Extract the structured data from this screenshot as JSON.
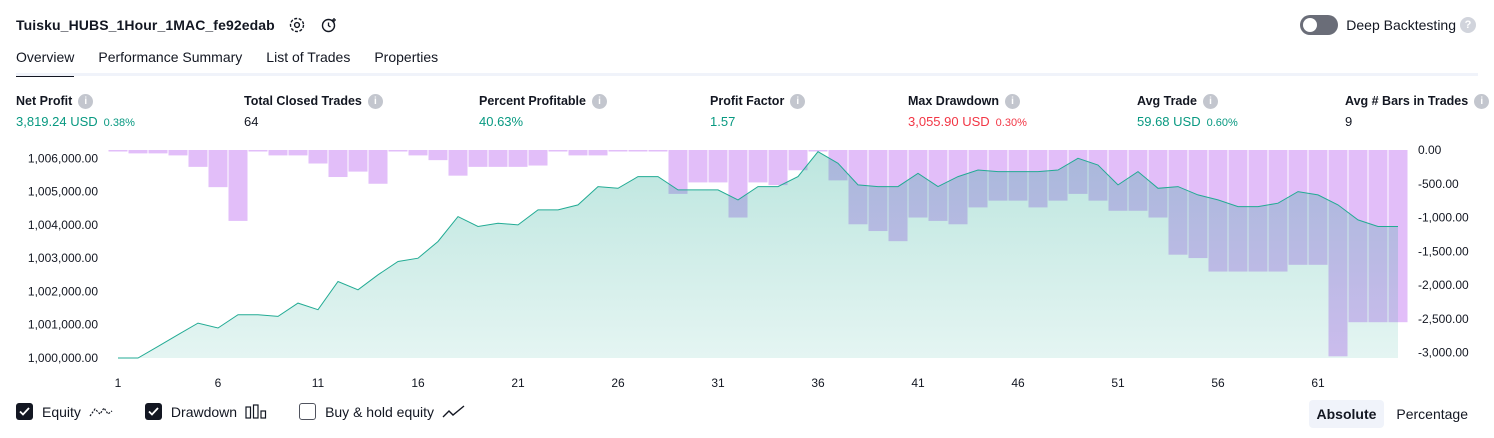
{
  "header": {
    "title": "Tuisku_HUBS_1Hour_1MAC_fe92edab",
    "deep_backtesting_label": "Deep Backtesting"
  },
  "tabs": [
    {
      "label": "Overview",
      "active": true
    },
    {
      "label": "Performance Summary"
    },
    {
      "label": "List of Trades"
    },
    {
      "label": "Properties"
    }
  ],
  "metrics": {
    "net_profit": {
      "label": "Net Profit",
      "value": "3,819.24 USD",
      "pct": "0.38%"
    },
    "total_closed_trades": {
      "label": "Total Closed Trades",
      "value": "64"
    },
    "percent_profitable": {
      "label": "Percent Profitable",
      "value": "40.63%"
    },
    "profit_factor": {
      "label": "Profit Factor",
      "value": "1.57"
    },
    "max_drawdown": {
      "label": "Max Drawdown",
      "value": "3,055.90 USD",
      "pct": "0.30%"
    },
    "avg_trade": {
      "label": "Avg Trade",
      "value": "59.68 USD",
      "pct": "0.60%"
    },
    "avg_bars": {
      "label": "Avg # Bars in Trades",
      "value": "9"
    }
  },
  "colors": {
    "positive": "#089981",
    "negative": "#f23645",
    "equity_line": "#22ab94",
    "drawdown_bar": "#ce93f5"
  },
  "chart_data": {
    "type": "area",
    "x_ticks": [
      "1",
      "6",
      "11",
      "16",
      "21",
      "26",
      "31",
      "36",
      "41",
      "46",
      "51",
      "56",
      "61"
    ],
    "y_left_ticks": [
      "1,006,000.00",
      "1,005,000.00",
      "1,004,000.00",
      "1,003,000.00",
      "1,002,000.00",
      "1,001,000.00",
      "1,000,000.00"
    ],
    "y_right_ticks": [
      "0.00",
      "-500.00",
      "-1,000.00",
      "-1,500.00",
      "-2,000.00",
      "-2,500.00",
      "-3,000.00"
    ],
    "ylim_left": [
      1000000,
      1006250
    ],
    "ylim_right": [
      -3080,
      0
    ],
    "x": [
      1,
      2,
      3,
      4,
      5,
      6,
      7,
      8,
      9,
      10,
      11,
      12,
      13,
      14,
      15,
      16,
      17,
      18,
      19,
      20,
      21,
      22,
      23,
      24,
      25,
      26,
      27,
      28,
      29,
      30,
      31,
      32,
      33,
      34,
      35,
      36,
      37,
      38,
      39,
      40,
      41,
      42,
      43,
      44,
      45,
      46,
      47,
      48,
      49,
      50,
      51,
      52,
      53,
      54,
      55,
      56,
      57,
      58,
      59,
      60,
      61,
      62,
      63,
      64,
      65
    ],
    "series": [
      {
        "name": "Equity",
        "values": [
          1000000,
          1000000,
          1000350,
          1000700,
          1001050,
          1000900,
          1001300,
          1001300,
          1001250,
          1001650,
          1001450,
          1002300,
          1002050,
          1002500,
          1002900,
          1003000,
          1003500,
          1004250,
          1003950,
          1004050,
          1004000,
          1004450,
          1004450,
          1004600,
          1005150,
          1005100,
          1005450,
          1005450,
          1005050,
          1005050,
          1005050,
          1004750,
          1005150,
          1005150,
          1005450,
          1006200,
          1005850,
          1005200,
          1005150,
          1005150,
          1005550,
          1005150,
          1005450,
          1005650,
          1005600,
          1005600,
          1005600,
          1005650,
          1006000,
          1005800,
          1005200,
          1005600,
          1005100,
          1005150,
          1004900,
          1004750,
          1004550,
          1004550,
          1004650,
          1005000,
          1004900,
          1004600,
          1004150,
          1003950,
          1003950
        ]
      },
      {
        "name": "Drawdown",
        "values": [
          0,
          -50,
          -50,
          -80,
          -250,
          -550,
          -1050,
          0,
          -80,
          -80,
          -200,
          -400,
          -320,
          -500,
          0,
          -80,
          -150,
          -380,
          -250,
          -250,
          -250,
          -230,
          0,
          -80,
          -80,
          0,
          0,
          0,
          -650,
          -480,
          -480,
          -1000,
          -480,
          -520,
          -300,
          0,
          -450,
          -1100,
          -1200,
          -1350,
          -1000,
          -1050,
          -1100,
          -850,
          -750,
          -750,
          -850,
          -750,
          -650,
          -750,
          -900,
          -900,
          -1000,
          -1550,
          -1600,
          -1800,
          -1800,
          -1800,
          -1800,
          -1700,
          -1700,
          -3055,
          -2550,
          -2550,
          -2550
        ]
      }
    ]
  },
  "legend": [
    {
      "label": "Equity",
      "checked": true
    },
    {
      "label": "Drawdown",
      "checked": true
    },
    {
      "label": "Buy & hold equity",
      "checked": false
    }
  ],
  "view_switch": {
    "absolute": "Absolute",
    "percentage": "Percentage"
  }
}
